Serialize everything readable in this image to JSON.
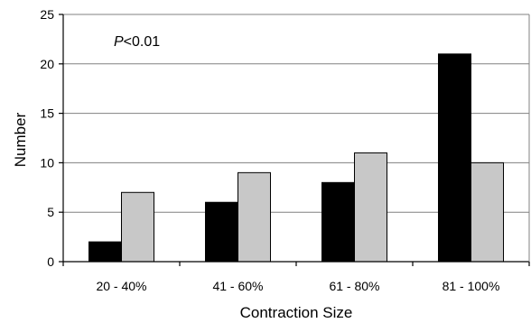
{
  "chart_data": {
    "type": "bar",
    "categories": [
      "20 - 40%",
      "41 - 60%",
      "61 - 80%",
      "81 - 100%"
    ],
    "series": [
      {
        "values": [
          2,
          6,
          8,
          21
        ],
        "color": "#000000"
      },
      {
        "values": [
          7,
          9,
          11,
          10
        ],
        "color": "#c8c8c8"
      }
    ],
    "xlabel": "Contraction Size",
    "ylabel": "Number",
    "ylim": [
      0,
      25
    ],
    "yticks": [
      0,
      5,
      10,
      15,
      20,
      25
    ],
    "grid": true,
    "annotation": {
      "italic": "P",
      "rest": "<0.01"
    }
  }
}
